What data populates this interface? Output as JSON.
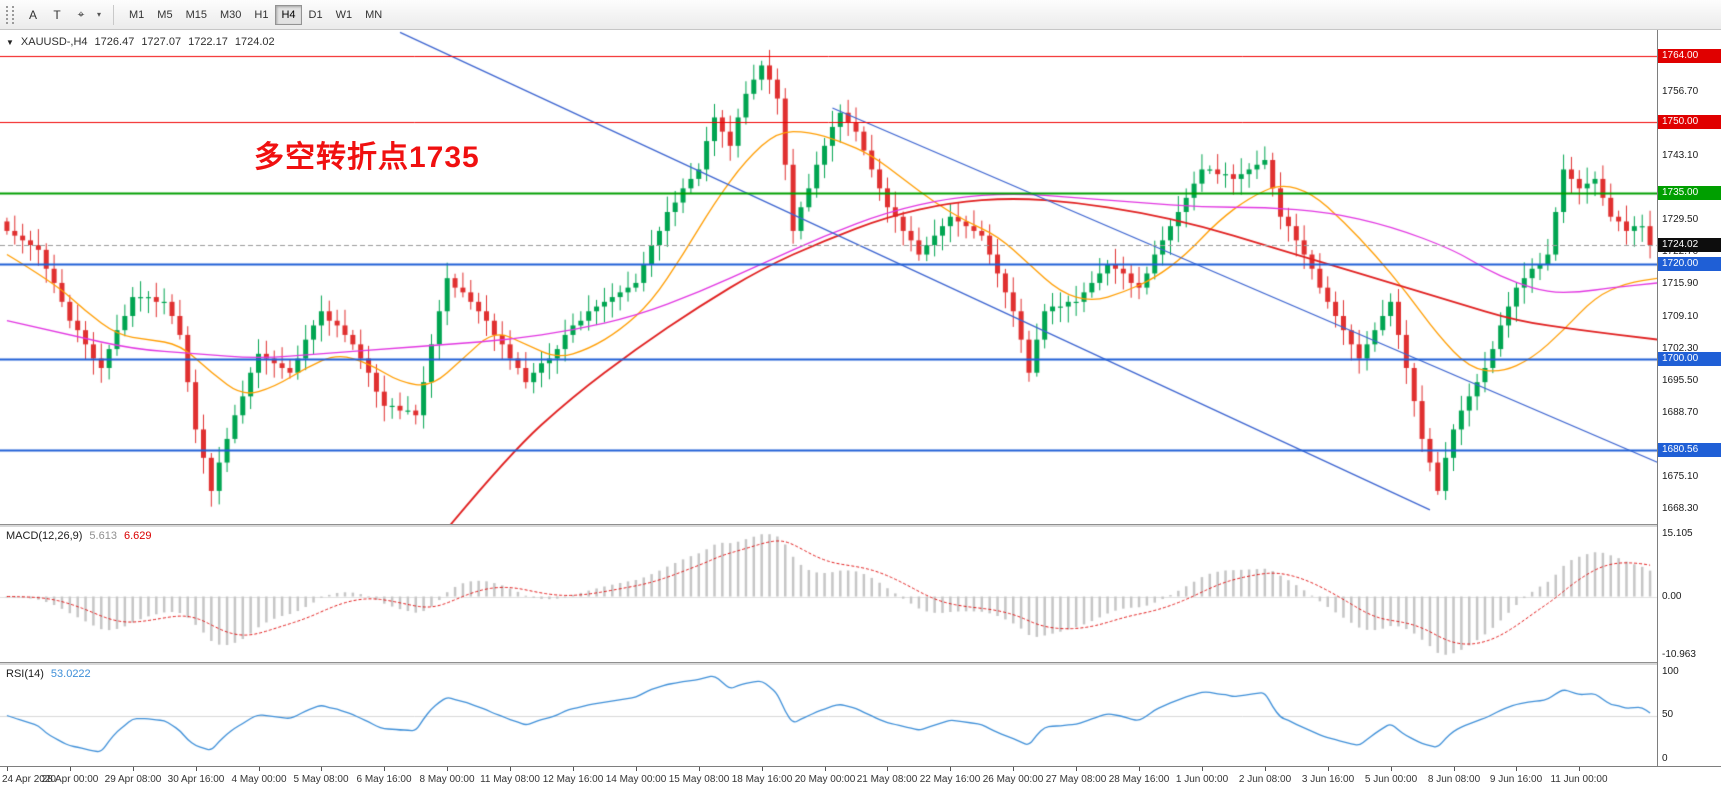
{
  "glyphs": {
    "title_triangle": "▼"
  },
  "toolbar": {
    "icons": [
      {
        "name": "annotate-letter-icon",
        "glyph": "A"
      },
      {
        "name": "text-tool-icon",
        "glyph": "T"
      },
      {
        "name": "shapes-tool-icon",
        "glyph": "⌖"
      },
      {
        "name": "shapes-caret-icon",
        "glyph": "▾"
      }
    ],
    "timeframes": [
      {
        "label": "M1",
        "active": false
      },
      {
        "label": "M5",
        "active": false
      },
      {
        "label": "M15",
        "active": false
      },
      {
        "label": "M30",
        "active": false
      },
      {
        "label": "H1",
        "active": false
      },
      {
        "label": "H4",
        "active": true
      },
      {
        "label": "D1",
        "active": false
      },
      {
        "label": "W1",
        "active": false
      },
      {
        "label": "MN",
        "active": false
      }
    ]
  },
  "chart": {
    "title": {
      "symbol": "XAUUSD-,H4",
      "open": "1726.47",
      "high": "1727.07",
      "low": "1722.17",
      "close": "1724.02"
    },
    "annotation": {
      "text": "多空转折点1735",
      "color": "#f01010"
    },
    "price_axis": {
      "range": {
        "max": 1769.5,
        "min": 1665.0
      },
      "ticks": [
        {
          "label": "1756.70",
          "price": 1756.7
        },
        {
          "label": "1743.10",
          "price": 1743.1
        },
        {
          "label": "1729.50",
          "price": 1729.5
        },
        {
          "label": "1722.70",
          "price": 1722.7
        },
        {
          "label": "1715.90",
          "price": 1715.9
        },
        {
          "label": "1709.10",
          "price": 1709.1
        },
        {
          "label": "1702.30",
          "price": 1702.3
        },
        {
          "label": "1695.50",
          "price": 1695.5
        },
        {
          "label": "1688.70",
          "price": 1688.7
        },
        {
          "label": "1675.10",
          "price": 1675.1
        },
        {
          "label": "1668.30",
          "price": 1668.3
        }
      ],
      "tags": [
        {
          "label": "1764.00",
          "price": 1764.0,
          "color": "#e00000"
        },
        {
          "label": "1750.00",
          "price": 1750.0,
          "color": "#e00000"
        },
        {
          "label": "1735.00",
          "price": 1735.0,
          "color": "#009f00"
        },
        {
          "label": "1724.02",
          "price": 1724.02,
          "color": "#0d0d0d"
        },
        {
          "label": "1720.00",
          "price": 1720.0,
          "color": "#1f5fd6"
        },
        {
          "label": "1700.00",
          "price": 1700.0,
          "color": "#1f5fd6"
        },
        {
          "label": "1680.56",
          "price": 1680.56,
          "color": "#1f5fd6"
        }
      ]
    },
    "hlines": [
      {
        "price": 1764.0,
        "color": "#f00000",
        "width": 1,
        "dash": false
      },
      {
        "price": 1750.0,
        "color": "#f00000",
        "width": 1,
        "dash": false
      },
      {
        "price": 1735.0,
        "color": "#009f00",
        "width": 2,
        "dash": false
      },
      {
        "price": 1724.02,
        "color": "#9a9a9a",
        "width": 1,
        "dash": true
      },
      {
        "price": 1720.0,
        "color": "#1f5fd6",
        "width": 2,
        "dash": false
      },
      {
        "price": 1700.0,
        "color": "#1f5fd6",
        "width": 2,
        "dash": false
      },
      {
        "price": 1680.56,
        "color": "#1f5fd6",
        "width": 2,
        "dash": false
      }
    ],
    "trendlines": [
      {
        "from": [
          50,
          1769
        ],
        "to": [
          181,
          1668
        ],
        "color": "#3c64d0",
        "width": 1.3
      },
      {
        "from": [
          105,
          1753
        ],
        "to": [
          210,
          1678
        ],
        "color": "#3c64d0",
        "width": 1.3
      }
    ],
    "ma_lines": [
      {
        "name": "ma-fast-orange",
        "color": "#ff9d00",
        "width": 1.3,
        "points": [
          [
            0,
            1722
          ],
          [
            6,
            1716
          ],
          [
            10,
            1710
          ],
          [
            14,
            1705
          ],
          [
            18,
            1704
          ],
          [
            22,
            1703
          ],
          [
            26,
            1697
          ],
          [
            30,
            1692
          ],
          [
            34,
            1694
          ],
          [
            38,
            1698
          ],
          [
            42,
            1701
          ],
          [
            46,
            1699
          ],
          [
            50,
            1695
          ],
          [
            54,
            1694
          ],
          [
            58,
            1700
          ],
          [
            62,
            1706
          ],
          [
            66,
            1703
          ],
          [
            70,
            1700
          ],
          [
            74,
            1702
          ],
          [
            78,
            1706
          ],
          [
            82,
            1712
          ],
          [
            86,
            1722
          ],
          [
            90,
            1733
          ],
          [
            94,
            1742
          ],
          [
            98,
            1748
          ],
          [
            102,
            1748
          ],
          [
            106,
            1746
          ],
          [
            110,
            1743
          ],
          [
            114,
            1738
          ],
          [
            118,
            1733
          ],
          [
            122,
            1729
          ],
          [
            126,
            1726
          ],
          [
            130,
            1720
          ],
          [
            134,
            1714
          ],
          [
            138,
            1712
          ],
          [
            142,
            1714
          ],
          [
            146,
            1717
          ],
          [
            150,
            1722
          ],
          [
            154,
            1729
          ],
          [
            158,
            1734
          ],
          [
            162,
            1737
          ],
          [
            166,
            1735
          ],
          [
            170,
            1729
          ],
          [
            174,
            1722
          ],
          [
            178,
            1714
          ],
          [
            182,
            1705
          ],
          [
            186,
            1698
          ],
          [
            190,
            1697
          ],
          [
            194,
            1700
          ],
          [
            198,
            1706
          ],
          [
            202,
            1713
          ],
          [
            206,
            1716
          ],
          [
            210,
            1717
          ]
        ]
      },
      {
        "name": "ma-mid-magenta",
        "color": "#e135e1",
        "width": 1.3,
        "points": [
          [
            0,
            1708
          ],
          [
            8,
            1705
          ],
          [
            16,
            1702
          ],
          [
            24,
            1701
          ],
          [
            32,
            1700
          ],
          [
            40,
            1701
          ],
          [
            48,
            1702
          ],
          [
            56,
            1703
          ],
          [
            64,
            1704
          ],
          [
            72,
            1706
          ],
          [
            80,
            1709
          ],
          [
            88,
            1714
          ],
          [
            96,
            1720
          ],
          [
            104,
            1726
          ],
          [
            112,
            1731
          ],
          [
            120,
            1734
          ],
          [
            128,
            1735
          ],
          [
            136,
            1734
          ],
          [
            144,
            1733
          ],
          [
            152,
            1732
          ],
          [
            160,
            1732
          ],
          [
            168,
            1731
          ],
          [
            176,
            1728
          ],
          [
            184,
            1723
          ],
          [
            188,
            1719
          ],
          [
            192,
            1716
          ],
          [
            196,
            1714
          ],
          [
            200,
            1714
          ],
          [
            204,
            1715
          ],
          [
            210,
            1716
          ]
        ]
      },
      {
        "name": "ma-slow-red",
        "color": "#e02020",
        "width": 1.8,
        "points": [
          [
            56,
            1664
          ],
          [
            64,
            1680
          ],
          [
            72,
            1692
          ],
          [
            80,
            1702
          ],
          [
            88,
            1711
          ],
          [
            96,
            1719
          ],
          [
            104,
            1725
          ],
          [
            112,
            1730
          ],
          [
            120,
            1733
          ],
          [
            128,
            1734
          ],
          [
            136,
            1733
          ],
          [
            144,
            1731
          ],
          [
            152,
            1728
          ],
          [
            160,
            1724
          ],
          [
            168,
            1720
          ],
          [
            176,
            1716
          ],
          [
            184,
            1712
          ],
          [
            192,
            1708
          ],
          [
            200,
            1706
          ],
          [
            210,
            1704
          ]
        ]
      }
    ],
    "candles": {
      "type": "candlestick",
      "up_color": "#00a551",
      "down_color": "#e03030",
      "closes": [
        1727,
        1726,
        1725,
        1724,
        1723,
        1719,
        1716,
        1712,
        1708,
        1706,
        1703,
        1700,
        1698,
        1702,
        1706,
        1709,
        1713,
        1713,
        1713,
        1712,
        1712,
        1709,
        1705,
        1695,
        1685,
        1679,
        1672,
        1678,
        1683,
        1688,
        1692,
        1697,
        1701,
        1700,
        1699,
        1698,
        1697,
        1700,
        1704,
        1707,
        1710,
        1708,
        1707,
        1705,
        1703,
        1700,
        1697,
        1693,
        1690,
        1690,
        1689,
        1689,
        1688,
        1695,
        1703,
        1710,
        1717,
        1715,
        1714,
        1712,
        1710,
        1708,
        1705,
        1703,
        1700,
        1698,
        1695,
        1697,
        1699,
        1700,
        1702,
        1705,
        1707,
        1708,
        1710,
        1711,
        1712,
        1713,
        1714,
        1715,
        1716,
        1720,
        1724,
        1727,
        1731,
        1733,
        1736,
        1738,
        1740,
        1746,
        1751,
        1748,
        1745,
        1751,
        1756,
        1759,
        1762,
        1759,
        1755,
        1741,
        1727,
        1732,
        1736,
        1741,
        1745,
        1749,
        1752,
        1750,
        1748,
        1744,
        1740,
        1736,
        1732,
        1730,
        1727,
        1725,
        1722,
        1724,
        1726,
        1728,
        1730,
        1729,
        1728,
        1727,
        1726,
        1722,
        1718,
        1714,
        1710,
        1704,
        1697,
        1704,
        1710,
        1711,
        1711,
        1712,
        1712,
        1714,
        1716,
        1718,
        1720,
        1719,
        1718,
        1716,
        1715,
        1718,
        1722,
        1725,
        1728,
        1731,
        1734,
        1737,
        1740,
        1740,
        1739,
        1739,
        1738,
        1739,
        1740,
        1741,
        1742,
        1736,
        1730,
        1728,
        1725,
        1722,
        1719,
        1715,
        1712,
        1709,
        1706,
        1703,
        1700,
        1703,
        1706,
        1709,
        1712,
        1705,
        1698,
        1691,
        1683,
        1678,
        1672,
        1679,
        1685,
        1689,
        1692,
        1695,
        1698,
        1702,
        1707,
        1711,
        1715,
        1717,
        1719,
        1720,
        1722,
        1731,
        1740,
        1738,
        1736,
        1737,
        1738,
        1734,
        1730,
        1729,
        1727,
        1728,
        1728,
        1724.02
      ]
    },
    "x_axis": {
      "bars_per_label": 8,
      "labels": [
        "24 Apr 2020",
        "28 Apr 00:00",
        "29 Apr 08:00",
        "30 Apr 16:00",
        "4 May 00:00",
        "5 May 08:00",
        "6 May 16:00",
        "8 May 00:00",
        "11 May 08:00",
        "12 May 16:00",
        "14 May 00:00",
        "15 May 08:00",
        "18 May 16:00",
        "20 May 00:00",
        "21 May 08:00",
        "22 May 16:00",
        "26 May 00:00",
        "27 May 08:00",
        "28 May 16:00",
        "1 Jun 00:00",
        "2 Jun 08:00",
        "3 Jun 16:00",
        "5 Jun 00:00",
        "8 Jun 08:00",
        "9 Jun 16:00",
        "11 Jun 00:00"
      ]
    }
  },
  "macd": {
    "label": "MACD(12,26,9)",
    "value_main": "5.613",
    "value_signal": "6.629",
    "params": {
      "fast": 12,
      "slow": 26,
      "signal": 9
    },
    "hist_color": "#c6c6c6",
    "signal_color": "#e01515",
    "axis": {
      "top": "15.105",
      "zero": "0.00",
      "bottom": "-10.963"
    }
  },
  "rsi": {
    "label": "RSI(14)",
    "value": "53.0222",
    "period": 14,
    "color": "#3e8fd8",
    "axis": {
      "top": "100",
      "mid": "50",
      "bottom": "0"
    }
  }
}
